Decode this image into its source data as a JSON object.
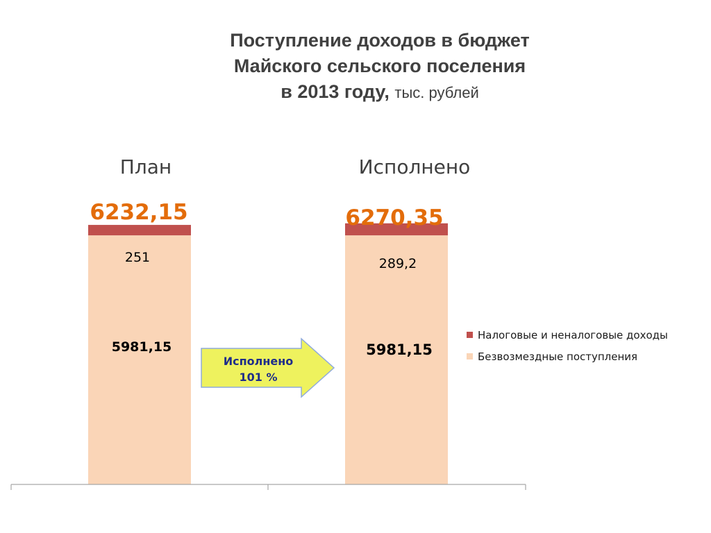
{
  "title": {
    "line1": "Поступление доходов в бюджет",
    "line2": "Майского сельского поселения",
    "line3_bold": "в 2013 году,",
    "line3_unit": "тыс. рублей"
  },
  "chart_data": {
    "type": "bar",
    "stacked": true,
    "categories": [
      "План",
      "Исполнено"
    ],
    "totals": [
      "6232,15",
      "6270,35"
    ],
    "series": [
      {
        "name": "Безвозмездные поступления",
        "values": [
          5981.15,
          5981.15
        ],
        "labels": [
          "5981,15",
          "5981,15"
        ],
        "color": "#fad5b7"
      },
      {
        "name": "Налоговые и неналоговые доходы",
        "values": [
          251,
          289.2
        ],
        "labels": [
          "251",
          "289,2"
        ],
        "color": "#c0504d"
      }
    ],
    "legend": "right",
    "grid": false
  },
  "arrow": {
    "line1": "Исполнено",
    "line2": "101 %",
    "fill": "#eef25e",
    "stroke": "#8faadc"
  },
  "colors": {
    "total_label": "#e36c0a",
    "title": "#404040",
    "axis": "#a6a6a6"
  }
}
